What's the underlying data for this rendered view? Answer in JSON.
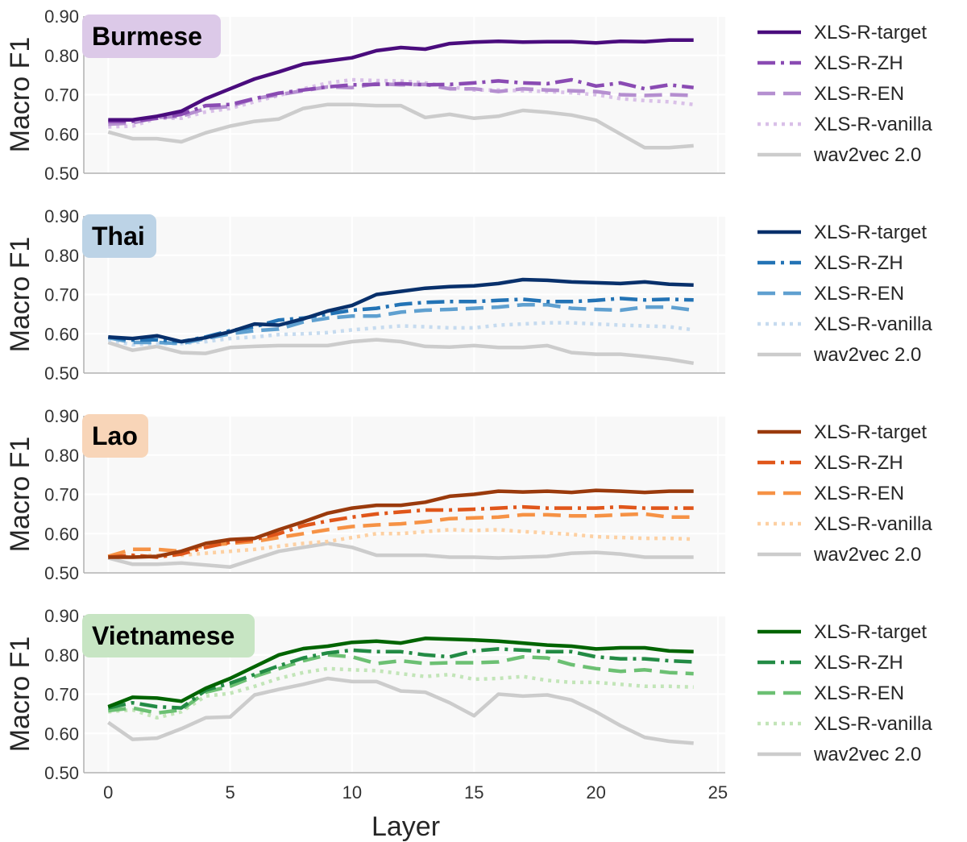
{
  "chart_data": {
    "type": "line",
    "xlabel": "Layer",
    "ylabel": "Macro F1",
    "xlim": [
      -1,
      25.3
    ],
    "ylim": [
      0.5,
      0.9
    ],
    "x_ticks": [
      "0",
      "5",
      "10",
      "15",
      "20",
      "25"
    ],
    "y_ticks": [
      "0.50",
      "0.60",
      "0.70",
      "0.80",
      "0.90"
    ],
    "layers": [
      0,
      1,
      2,
      3,
      4,
      5,
      6,
      7,
      8,
      9,
      10,
      11,
      12,
      13,
      14,
      15,
      16,
      17,
      18,
      19,
      20,
      21,
      22,
      23,
      24
    ],
    "series_names": [
      "XLS-R-target",
      "XLS-R-ZH",
      "XLS-R-EN",
      "XLS-R-vanilla",
      "wav2vec 2.0"
    ],
    "panels": [
      {
        "title": "Burmese",
        "badge_color": "#dcc9e8",
        "colors": [
          "#4a0c7d",
          "#8a4bb3",
          "#b58fd0",
          "#d9c0e8",
          "#cccccc"
        ],
        "series": [
          [
            0.636,
            0.636,
            0.645,
            0.658,
            0.69,
            0.715,
            0.74,
            0.758,
            0.778,
            0.786,
            0.794,
            0.812,
            0.82,
            0.816,
            0.83,
            0.834,
            0.836,
            0.834,
            0.835,
            0.835,
            0.832,
            0.836,
            0.835,
            0.839,
            0.839
          ],
          [
            0.632,
            0.632,
            0.64,
            0.65,
            0.672,
            0.675,
            0.69,
            0.704,
            0.712,
            0.72,
            0.725,
            0.726,
            0.728,
            0.725,
            0.726,
            0.73,
            0.735,
            0.73,
            0.728,
            0.738,
            0.722,
            0.73,
            0.715,
            0.725,
            0.718
          ],
          [
            0.625,
            0.628,
            0.642,
            0.645,
            0.665,
            0.67,
            0.69,
            0.7,
            0.71,
            0.72,
            0.718,
            0.728,
            0.725,
            0.726,
            0.715,
            0.715,
            0.708,
            0.715,
            0.712,
            0.71,
            0.708,
            0.7,
            0.698,
            0.7,
            0.698
          ],
          [
            0.618,
            0.62,
            0.64,
            0.64,
            0.656,
            0.665,
            0.682,
            0.698,
            0.715,
            0.73,
            0.738,
            0.736,
            0.735,
            0.73,
            0.72,
            0.712,
            0.712,
            0.71,
            0.708,
            0.705,
            0.7,
            0.69,
            0.685,
            0.682,
            0.675
          ],
          [
            0.605,
            0.588,
            0.588,
            0.58,
            0.603,
            0.62,
            0.632,
            0.638,
            0.665,
            0.675,
            0.675,
            0.672,
            0.672,
            0.642,
            0.65,
            0.64,
            0.645,
            0.66,
            0.655,
            0.648,
            0.635,
            0.6,
            0.565,
            0.565,
            0.57
          ]
        ]
      },
      {
        "title": "Thai",
        "badge_color": "#bcd3e6",
        "colors": [
          "#08306b",
          "#2373b5",
          "#5fa0d0",
          "#c6dbef",
          "#cccccc"
        ],
        "series": [
          [
            0.592,
            0.588,
            0.595,
            0.58,
            0.59,
            0.605,
            0.625,
            0.622,
            0.638,
            0.658,
            0.672,
            0.7,
            0.708,
            0.716,
            0.72,
            0.722,
            0.728,
            0.738,
            0.736,
            0.732,
            0.73,
            0.728,
            0.732,
            0.726,
            0.724
          ],
          [
            0.592,
            0.584,
            0.585,
            0.58,
            0.592,
            0.608,
            0.618,
            0.635,
            0.64,
            0.65,
            0.66,
            0.665,
            0.675,
            0.68,
            0.682,
            0.682,
            0.685,
            0.688,
            0.682,
            0.682,
            0.685,
            0.69,
            0.686,
            0.688,
            0.686
          ],
          [
            0.59,
            0.578,
            0.578,
            0.575,
            0.588,
            0.6,
            0.608,
            0.612,
            0.63,
            0.64,
            0.645,
            0.645,
            0.655,
            0.66,
            0.662,
            0.665,
            0.668,
            0.674,
            0.674,
            0.665,
            0.662,
            0.66,
            0.668,
            0.668,
            0.66
          ],
          [
            0.585,
            0.572,
            0.575,
            0.575,
            0.58,
            0.588,
            0.592,
            0.598,
            0.6,
            0.603,
            0.61,
            0.615,
            0.62,
            0.618,
            0.615,
            0.615,
            0.622,
            0.625,
            0.628,
            0.628,
            0.625,
            0.622,
            0.62,
            0.618,
            0.61
          ],
          [
            0.578,
            0.558,
            0.568,
            0.552,
            0.55,
            0.565,
            0.568,
            0.57,
            0.57,
            0.57,
            0.58,
            0.585,
            0.58,
            0.568,
            0.566,
            0.57,
            0.565,
            0.565,
            0.57,
            0.552,
            0.548,
            0.548,
            0.542,
            0.535,
            0.525
          ]
        ]
      },
      {
        "title": "Lao",
        "badge_color": "#f8d5b8",
        "colors": [
          "#9a3a0c",
          "#e0561a",
          "#f69245",
          "#fdd0a2",
          "#cccccc"
        ],
        "series": [
          [
            0.54,
            0.54,
            0.542,
            0.555,
            0.575,
            0.585,
            0.588,
            0.61,
            0.63,
            0.652,
            0.665,
            0.672,
            0.672,
            0.68,
            0.695,
            0.7,
            0.708,
            0.706,
            0.708,
            0.705,
            0.71,
            0.708,
            0.705,
            0.708,
            0.708
          ],
          [
            0.54,
            0.545,
            0.54,
            0.548,
            0.565,
            0.578,
            0.585,
            0.6,
            0.62,
            0.632,
            0.642,
            0.65,
            0.655,
            0.66,
            0.66,
            0.662,
            0.665,
            0.668,
            0.665,
            0.665,
            0.665,
            0.668,
            0.665,
            0.665,
            0.665
          ],
          [
            0.542,
            0.56,
            0.56,
            0.555,
            0.57,
            0.575,
            0.58,
            0.59,
            0.6,
            0.61,
            0.618,
            0.622,
            0.625,
            0.63,
            0.638,
            0.64,
            0.642,
            0.648,
            0.648,
            0.645,
            0.645,
            0.648,
            0.65,
            0.642,
            0.642
          ],
          [
            0.54,
            0.542,
            0.545,
            0.545,
            0.55,
            0.555,
            0.56,
            0.568,
            0.575,
            0.58,
            0.59,
            0.6,
            0.6,
            0.605,
            0.61,
            0.608,
            0.61,
            0.605,
            0.602,
            0.598,
            0.592,
            0.59,
            0.588,
            0.588,
            0.586
          ],
          [
            0.538,
            0.522,
            0.522,
            0.525,
            0.52,
            0.515,
            0.535,
            0.555,
            0.565,
            0.575,
            0.565,
            0.545,
            0.545,
            0.545,
            0.54,
            0.54,
            0.538,
            0.54,
            0.542,
            0.55,
            0.552,
            0.548,
            0.54,
            0.54,
            0.54
          ]
        ]
      },
      {
        "title": "Vietnamese",
        "badge_color": "#c7e5c3",
        "colors": [
          "#006400",
          "#238b45",
          "#6cc073",
          "#c2e5b8",
          "#cccccc"
        ],
        "series": [
          [
            0.668,
            0.692,
            0.69,
            0.682,
            0.715,
            0.74,
            0.77,
            0.8,
            0.816,
            0.822,
            0.832,
            0.835,
            0.83,
            0.842,
            0.84,
            0.838,
            0.835,
            0.83,
            0.825,
            0.822,
            0.815,
            0.818,
            0.818,
            0.81,
            0.808
          ],
          [
            0.665,
            0.678,
            0.668,
            0.665,
            0.71,
            0.728,
            0.75,
            0.772,
            0.792,
            0.805,
            0.812,
            0.808,
            0.808,
            0.8,
            0.795,
            0.81,
            0.815,
            0.812,
            0.808,
            0.808,
            0.795,
            0.79,
            0.79,
            0.785,
            0.782
          ],
          [
            0.658,
            0.665,
            0.652,
            0.66,
            0.705,
            0.72,
            0.745,
            0.765,
            0.785,
            0.8,
            0.795,
            0.778,
            0.785,
            0.778,
            0.78,
            0.78,
            0.782,
            0.795,
            0.792,
            0.775,
            0.765,
            0.758,
            0.762,
            0.755,
            0.752
          ],
          [
            0.655,
            0.66,
            0.64,
            0.655,
            0.695,
            0.702,
            0.72,
            0.74,
            0.755,
            0.765,
            0.762,
            0.76,
            0.752,
            0.745,
            0.75,
            0.738,
            0.74,
            0.745,
            0.735,
            0.73,
            0.73,
            0.725,
            0.72,
            0.72,
            0.718
          ],
          [
            0.628,
            0.585,
            0.588,
            0.612,
            0.64,
            0.642,
            0.698,
            0.712,
            0.725,
            0.74,
            0.732,
            0.732,
            0.708,
            0.705,
            0.678,
            0.645,
            0.7,
            0.695,
            0.698,
            0.685,
            0.655,
            0.62,
            0.59,
            0.58,
            0.575
          ]
        ]
      }
    ]
  }
}
